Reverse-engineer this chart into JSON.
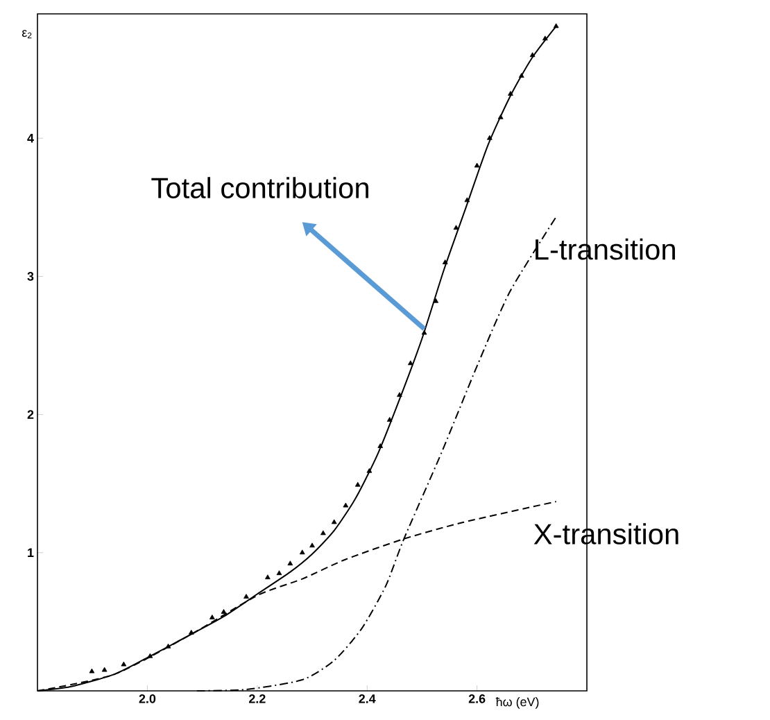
{
  "chart_data": {
    "type": "line",
    "xlabel": "ħω (eV)",
    "ylabel": "ε$_{2}$",
    "xlim": [
      1.8,
      2.8
    ],
    "ylim": [
      0,
      4.9
    ],
    "xticks": [
      {
        "value": 2.0,
        "label": "2.0"
      },
      {
        "value": 2.2,
        "label": "2.2"
      },
      {
        "value": 2.4,
        "label": "2.4"
      },
      {
        "value": 2.6,
        "label": "2.6"
      }
    ],
    "yticks": [
      1,
      2,
      3,
      4
    ],
    "grid": false,
    "annotations": [
      {
        "text": "Total contribution",
        "x": 2.504,
        "y": 2.62
      }
    ],
    "series": [
      {
        "type": "line",
        "color": "#000000",
        "line_style": "solid",
        "marker": "none",
        "x": [
          1.8,
          1.86,
          1.94,
          2.0,
          2.08,
          2.14,
          2.2,
          2.26,
          2.3,
          2.34,
          2.38,
          2.42,
          2.46,
          2.5,
          2.54,
          2.58,
          2.62,
          2.66,
          2.7,
          2.744
        ],
        "values": [
          0,
          0.03,
          0.12,
          0.24,
          0.41,
          0.54,
          0.7,
          0.86,
          0.99,
          1.16,
          1.4,
          1.72,
          2.12,
          2.55,
          3.05,
          3.5,
          3.95,
          4.3,
          4.58,
          4.81
        ]
      },
      {
        "type": "scatter",
        "color": "#000000",
        "marker": "triangle",
        "x": [
          1.899,
          1.922,
          1.957,
          2.005,
          2.038,
          2.08,
          2.118,
          2.139,
          2.18,
          2.219,
          2.24,
          2.26,
          2.282,
          2.3,
          2.32,
          2.34,
          2.361,
          2.383,
          2.404,
          2.424,
          2.441,
          2.459,
          2.479,
          2.504,
          2.525,
          2.542,
          2.562,
          2.582,
          2.6,
          2.623,
          2.643,
          2.661,
          2.681,
          2.701,
          2.724,
          2.744
        ],
        "values": [
          0.14,
          0.15,
          0.19,
          0.25,
          0.32,
          0.42,
          0.53,
          0.57,
          0.68,
          0.82,
          0.85,
          0.92,
          1.0,
          1.05,
          1.14,
          1.22,
          1.34,
          1.49,
          1.59,
          1.77,
          1.96,
          2.14,
          2.37,
          2.59,
          2.82,
          3.1,
          3.35,
          3.55,
          3.8,
          4.0,
          4.15,
          4.32,
          4.45,
          4.6,
          4.72,
          4.81
        ]
      },
      {
        "type": "line",
        "name": "L-transition",
        "color": "#000000",
        "line_style": "dashdot",
        "marker": "none",
        "x": [
          2.09,
          2.18,
          2.282,
          2.34,
          2.39,
          2.434,
          2.467,
          2.535,
          2.6,
          2.66,
          2.744
        ],
        "values": [
          0,
          0.01,
          0.08,
          0.22,
          0.45,
          0.76,
          1.1,
          1.72,
          2.35,
          2.89,
          3.43
        ]
      },
      {
        "type": "line",
        "name": "X-transition",
        "color": "#000000",
        "line_style": "dashed",
        "marker": "none",
        "x": [
          1.8,
          1.94,
          2.08,
          2.2,
          2.282,
          2.36,
          2.467,
          2.575,
          2.744
        ],
        "values": [
          0,
          0.12,
          0.41,
          0.69,
          0.81,
          0.95,
          1.1,
          1.22,
          1.37
        ]
      }
    ]
  }
}
